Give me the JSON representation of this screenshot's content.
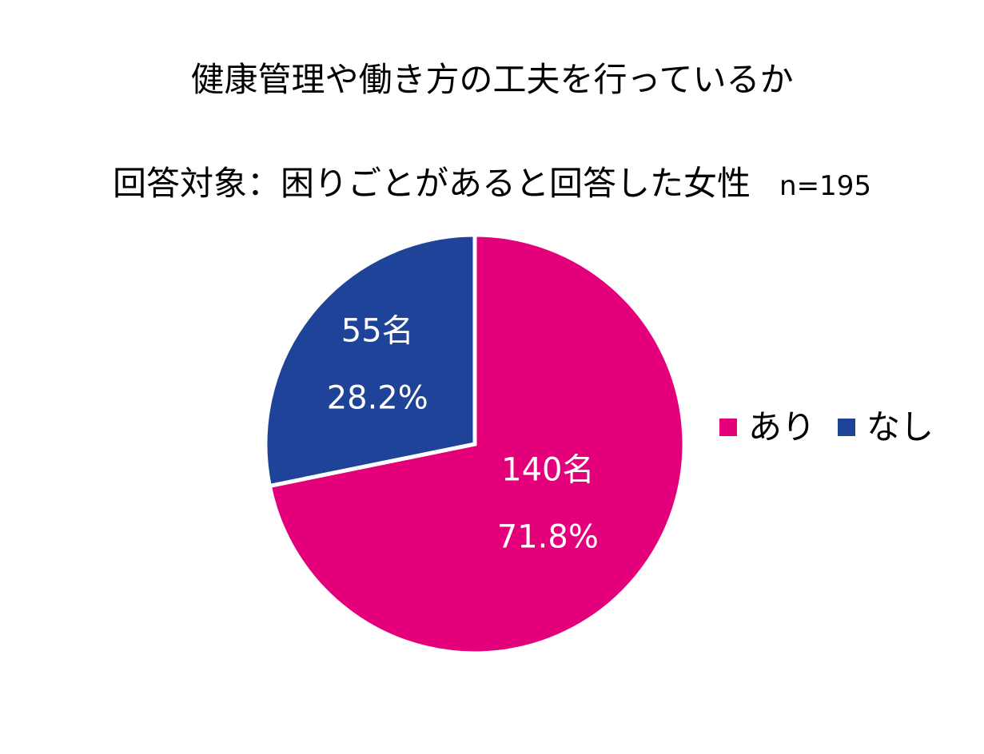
{
  "chart_data": {
    "type": "pie",
    "title": "健康管理や働き方の工夫を行っているか",
    "subtitle": "回答対象：困りごとがあると回答した女性",
    "n_label": "n=195",
    "categories": [
      "あり",
      "なし"
    ],
    "values": [
      140,
      55
    ],
    "percentages": [
      71.8,
      28.2
    ],
    "count_labels": [
      "140名",
      "55名"
    ],
    "percent_labels": [
      "71.8%",
      "28.2%"
    ],
    "colors": [
      "#E3007A",
      "#1E4398"
    ],
    "legend_position": "right"
  }
}
